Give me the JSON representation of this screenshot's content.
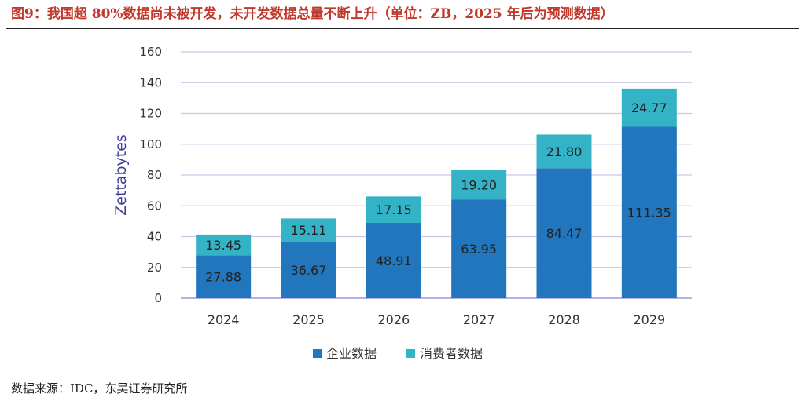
{
  "header": {
    "title": "图9：我国超 80%数据尚未被开发，未开发数据总量不断上升（单位：ZB，2025 年后为预测数据）"
  },
  "footer": {
    "source": "数据来源：IDC，东吴证券研究所"
  },
  "colors": {
    "enterprise": "#2176bd",
    "consumer": "#35b3c6",
    "grid": "#c8c8ea",
    "axis": "#9a9ad8"
  },
  "chart_data": {
    "type": "bar",
    "stacked": true,
    "categories": [
      "2024",
      "2025",
      "2026",
      "2027",
      "2028",
      "2029"
    ],
    "series": [
      {
        "name": "企业数据",
        "values": [
          27.88,
          36.67,
          48.91,
          63.95,
          84.47,
          111.35
        ]
      },
      {
        "name": "消费者数据",
        "values": [
          13.45,
          15.11,
          17.15,
          19.2,
          21.8,
          24.77
        ]
      }
    ],
    "value_labels": [
      [
        "27.88",
        "36.67",
        "48.91",
        "63.95",
        "84.47",
        "111.35"
      ],
      [
        "13.45",
        "15.11",
        "17.15",
        "19.20",
        "21.80",
        "24.77"
      ]
    ],
    "ylabel": "Zettabytes",
    "ylim": [
      0,
      160
    ],
    "yticks": [
      0,
      20,
      40,
      60,
      80,
      100,
      120,
      140,
      160
    ],
    "grid": true,
    "legend_position": "bottom"
  }
}
